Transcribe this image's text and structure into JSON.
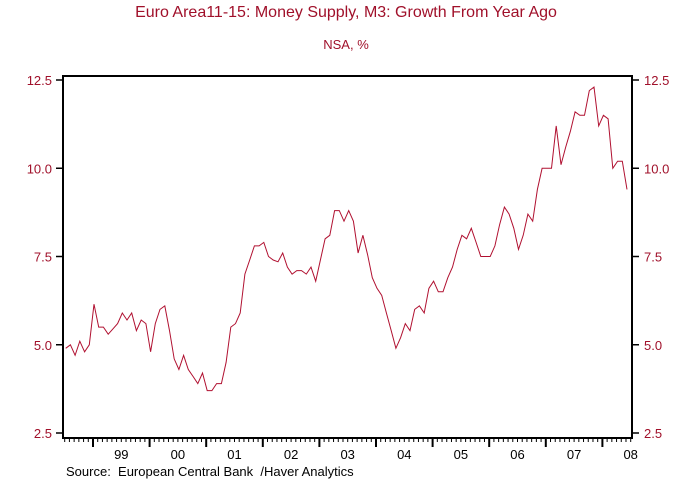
{
  "chart_data": {
    "type": "line",
    "title": "Euro Area11-15: Money Supply, M3: Growth From Year Ago",
    "subtitle": "NSA, %",
    "source": "Source:  European Central Bank  /Haver Analytics",
    "xlabel": "",
    "ylabel": "",
    "ylim": [
      2.5,
      12.5
    ],
    "yticks": [
      "2.5",
      "5.0",
      "7.5",
      "10.0",
      "12.5"
    ],
    "ytick_values": [
      2.5,
      5.0,
      7.5,
      10.0,
      12.5
    ],
    "y_axis_sides": "left and right",
    "xticks": [
      "99",
      "00",
      "01",
      "02",
      "03",
      "04",
      "05",
      "06",
      "07",
      "08"
    ],
    "xtick_years": [
      1999,
      2000,
      2001,
      2002,
      2003,
      2004,
      2005,
      2006,
      2007,
      2008
    ],
    "xlim": [
      "1998-07",
      "2008-07"
    ],
    "grid": false,
    "line_color": "#b01030",
    "x": [
      "1998-07",
      "1998-08",
      "1998-09",
      "1998-10",
      "1998-11",
      "1998-12",
      "1999-01",
      "1999-02",
      "1999-03",
      "1999-04",
      "1999-05",
      "1999-06",
      "1999-07",
      "1999-08",
      "1999-09",
      "1999-10",
      "1999-11",
      "1999-12",
      "2000-01",
      "2000-02",
      "2000-03",
      "2000-04",
      "2000-05",
      "2000-06",
      "2000-07",
      "2000-08",
      "2000-09",
      "2000-10",
      "2000-11",
      "2000-12",
      "2001-01",
      "2001-02",
      "2001-03",
      "2001-04",
      "2001-05",
      "2001-06",
      "2001-07",
      "2001-08",
      "2001-09",
      "2001-10",
      "2001-11",
      "2001-12",
      "2002-01",
      "2002-02",
      "2002-03",
      "2002-04",
      "2002-05",
      "2002-06",
      "2002-07",
      "2002-08",
      "2002-09",
      "2002-10",
      "2002-11",
      "2002-12",
      "2003-01",
      "2003-02",
      "2003-03",
      "2003-04",
      "2003-05",
      "2003-06",
      "2003-07",
      "2003-08",
      "2003-09",
      "2003-10",
      "2003-11",
      "2003-12",
      "2004-01",
      "2004-02",
      "2004-03",
      "2004-04",
      "2004-05",
      "2004-06",
      "2004-07",
      "2004-08",
      "2004-09",
      "2004-10",
      "2004-11",
      "2004-12",
      "2005-01",
      "2005-02",
      "2005-03",
      "2005-04",
      "2005-05",
      "2005-06",
      "2005-07",
      "2005-08",
      "2005-09",
      "2005-10",
      "2005-11",
      "2005-12",
      "2006-01",
      "2006-02",
      "2006-03",
      "2006-04",
      "2006-05",
      "2006-06",
      "2006-07",
      "2006-08",
      "2006-09",
      "2006-10",
      "2006-11",
      "2006-12",
      "2007-01",
      "2007-02",
      "2007-03",
      "2007-04",
      "2007-05",
      "2007-06",
      "2007-07",
      "2007-08",
      "2007-09",
      "2007-10",
      "2007-11",
      "2007-12",
      "2008-01",
      "2008-02",
      "2008-03",
      "2008-04",
      "2008-05",
      "2008-06"
    ],
    "series": [
      {
        "values": [
          4.9,
          5.0,
          4.7,
          5.1,
          4.8,
          5.0,
          6.15,
          5.5,
          5.5,
          5.3,
          5.45,
          5.6,
          5.9,
          5.7,
          5.9,
          5.4,
          5.7,
          5.6,
          4.8,
          5.6,
          6.0,
          6.1,
          5.4,
          4.6,
          4.3,
          4.7,
          4.3,
          4.1,
          3.9,
          4.2,
          3.7,
          3.7,
          3.9,
          3.9,
          4.5,
          5.5,
          5.6,
          5.9,
          7.0,
          7.4,
          7.8,
          7.8,
          7.9,
          7.5,
          7.4,
          7.35,
          7.6,
          7.2,
          7.0,
          7.1,
          7.1,
          7.0,
          7.2,
          6.8,
          7.4,
          8.0,
          8.1,
          8.8,
          8.8,
          8.5,
          8.8,
          8.5,
          7.6,
          8.1,
          7.55,
          6.9,
          6.6,
          6.4,
          5.9,
          5.4,
          4.9,
          5.2,
          5.6,
          5.4,
          6.0,
          6.1,
          5.9,
          6.6,
          6.8,
          6.5,
          6.5,
          6.9,
          7.2,
          7.7,
          8.1,
          8.0,
          8.3,
          7.9,
          7.5,
          7.5,
          7.5,
          7.8,
          8.4,
          8.9,
          8.7,
          8.3,
          7.7,
          8.1,
          8.7,
          8.5,
          9.4,
          10.0,
          10.0,
          10.0,
          11.2,
          10.1,
          10.6,
          11.05,
          11.6,
          11.5,
          11.5,
          12.2,
          12.3,
          11.2,
          11.5,
          11.4,
          10.0,
          10.2,
          10.2,
          9.4
        ]
      }
    ]
  }
}
